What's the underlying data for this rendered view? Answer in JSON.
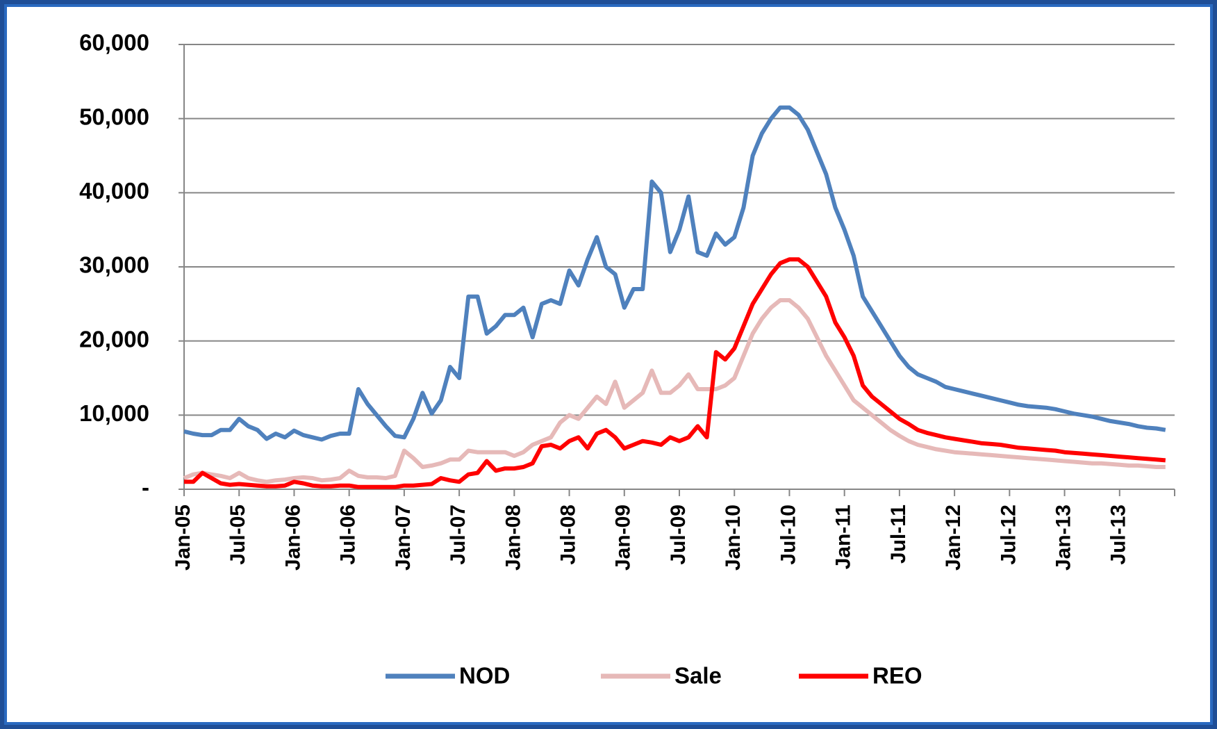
{
  "chart_data": {
    "type": "line",
    "categories": [
      "Jan-05",
      null,
      null,
      null,
      null,
      null,
      "Jul-05",
      null,
      null,
      null,
      null,
      null,
      "Jan-06",
      null,
      null,
      null,
      null,
      null,
      "Jul-06",
      null,
      null,
      null,
      null,
      null,
      "Jan-07",
      null,
      null,
      null,
      null,
      null,
      "Jul-07",
      null,
      null,
      null,
      null,
      null,
      "Jan-08",
      null,
      null,
      null,
      null,
      null,
      "Jul-08",
      null,
      null,
      null,
      null,
      null,
      "Jan-09",
      null,
      null,
      null,
      null,
      null,
      "Jul-09",
      null,
      null,
      null,
      null,
      null,
      "Jan-10",
      null,
      null,
      null,
      null,
      null,
      "Jul-10",
      null,
      null,
      null,
      null,
      null,
      "Jan-11",
      null,
      null,
      null,
      null,
      null,
      "Jul-11",
      null,
      null,
      null,
      null,
      null,
      "Jan-12",
      null,
      null,
      null,
      null,
      null,
      "Jul-12",
      null,
      null,
      null,
      null,
      null,
      "Jan-13",
      null,
      null,
      null,
      null,
      null,
      "Jul-13",
      null,
      null,
      null,
      null,
      null
    ],
    "series": [
      {
        "name": "NOD",
        "color": "#4f81bd",
        "values": [
          7800,
          7500,
          7300,
          7300,
          8000,
          8000,
          9500,
          8500,
          8000,
          6800,
          7500,
          7000,
          7900,
          7300,
          7000,
          6700,
          7200,
          7500,
          7500,
          13500,
          11500,
          10000,
          8500,
          7200,
          7000,
          9500,
          13000,
          10200,
          12000,
          16500,
          15000,
          26000,
          26000,
          21000,
          22000,
          23500,
          23500,
          24500,
          20500,
          25000,
          25500,
          25000,
          29500,
          27500,
          31000,
          34000,
          30000,
          29000,
          24500,
          27000,
          27000,
          41500,
          40000,
          32000,
          35000,
          39500,
          32000,
          31500,
          34500,
          33000,
          34000,
          38000,
          45000,
          48000,
          50000,
          51500,
          51500,
          50500,
          48500,
          45500,
          42500,
          38000,
          35000,
          31500,
          26000,
          24000,
          22000,
          20000,
          18000,
          16500,
          15500,
          15000,
          14500,
          13800,
          13500,
          13200,
          12900,
          12600,
          12300,
          12000,
          11700,
          11400,
          11200,
          11100,
          11000,
          10800,
          10500,
          10200,
          10000,
          9800,
          9500,
          9200,
          9000,
          8800,
          8500,
          8300,
          8200,
          8000
        ]
      },
      {
        "name": "Sale",
        "color": "#e6b9b8",
        "values": [
          1500,
          2000,
          2200,
          2000,
          1800,
          1500,
          2200,
          1500,
          1200,
          1000,
          1200,
          1300,
          1500,
          1600,
          1500,
          1200,
          1300,
          1500,
          2500,
          1800,
          1600,
          1600,
          1500,
          1800,
          5200,
          4200,
          3000,
          3200,
          3500,
          4000,
          4000,
          5200,
          5000,
          5000,
          5000,
          5000,
          4500,
          5000,
          6000,
          6500,
          7000,
          9000,
          10000,
          9500,
          11000,
          12500,
          11500,
          14500,
          11000,
          12000,
          13000,
          16000,
          13000,
          13000,
          14000,
          15500,
          13500,
          13500,
          13500,
          14000,
          15000,
          18000,
          21000,
          23000,
          24500,
          25500,
          25500,
          24500,
          23000,
          20500,
          18000,
          16000,
          14000,
          12000,
          11000,
          10000,
          9000,
          8000,
          7200,
          6500,
          6000,
          5700,
          5400,
          5200,
          5000,
          4900,
          4800,
          4700,
          4600,
          4500,
          4400,
          4300,
          4200,
          4100,
          4000,
          3900,
          3800,
          3700,
          3600,
          3500,
          3500,
          3400,
          3300,
          3200,
          3200,
          3100,
          3000,
          3000
        ]
      },
      {
        "name": "REO",
        "color": "#ff0000",
        "values": [
          1000,
          1000,
          2200,
          1500,
          800,
          600,
          700,
          600,
          500,
          400,
          400,
          500,
          1000,
          800,
          500,
          400,
          400,
          500,
          500,
          300,
          300,
          300,
          300,
          300,
          500,
          500,
          600,
          700,
          1500,
          1200,
          1000,
          2000,
          2200,
          3800,
          2500,
          2800,
          2800,
          3000,
          3500,
          5800,
          6000,
          5500,
          6500,
          7000,
          5500,
          7500,
          8000,
          7000,
          5500,
          6000,
          6500,
          6300,
          6000,
          7000,
          6500,
          7000,
          8500,
          7000,
          18500,
          17500,
          19000,
          22000,
          25000,
          27000,
          29000,
          30500,
          31000,
          31000,
          30000,
          28000,
          26000,
          22500,
          20500,
          18000,
          14000,
          12500,
          11500,
          10500,
          9500,
          8800,
          8000,
          7600,
          7300,
          7000,
          6800,
          6600,
          6400,
          6200,
          6100,
          6000,
          5800,
          5600,
          5500,
          5400,
          5300,
          5200,
          5000,
          4900,
          4800,
          4700,
          4600,
          4500,
          4400,
          4300,
          4200,
          4100,
          4000,
          3900
        ]
      }
    ],
    "ylim": [
      0,
      60000
    ],
    "yticks": [
      {
        "value": 0,
        "label": "-"
      },
      {
        "value": 10000,
        "label": "10,000"
      },
      {
        "value": 20000,
        "label": "20,000"
      },
      {
        "value": 30000,
        "label": "30,000"
      },
      {
        "value": 40000,
        "label": "40,000"
      },
      {
        "value": 50000,
        "label": "50,000"
      },
      {
        "value": 60000,
        "label": "60,000"
      }
    ],
    "grid": true,
    "legend": "bottom"
  }
}
